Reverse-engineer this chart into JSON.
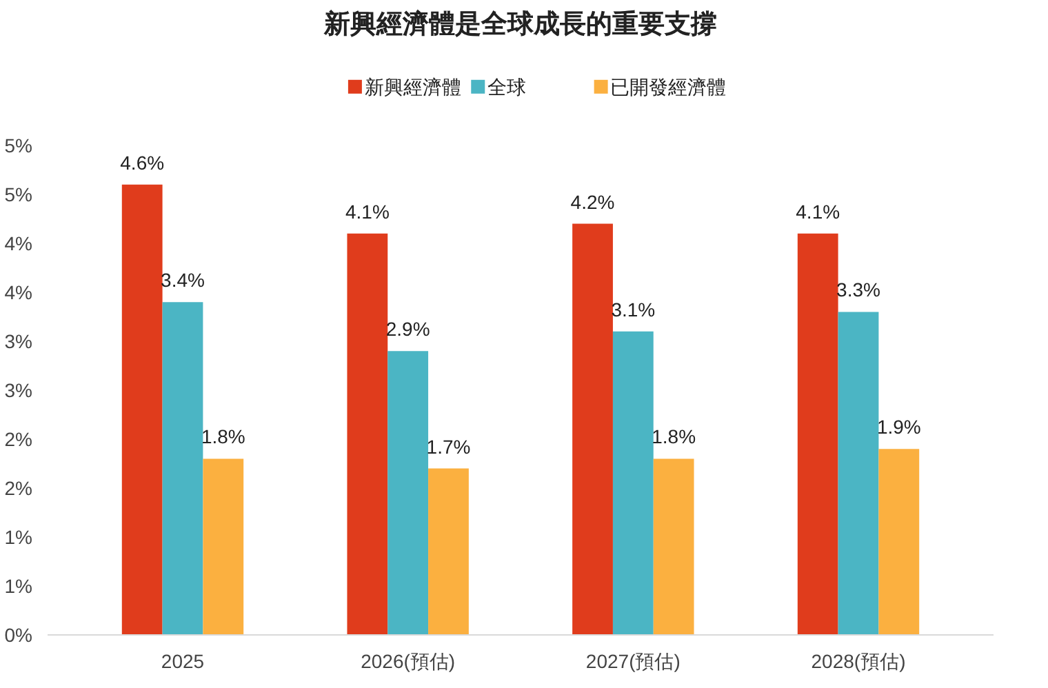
{
  "chart_data": {
    "type": "bar",
    "title": "新興經濟體是全球成長的重要支撐",
    "categories": [
      "2025",
      "2026(預估)",
      "2027(預估)",
      "2028(預估)"
    ],
    "series": [
      {
        "name": "新興經濟體",
        "color": "#e03c1c",
        "values": [
          4.6,
          4.1,
          4.2,
          4.1
        ],
        "value_labels": [
          "4.6%",
          "4.1%",
          "4.2%",
          "4.1%"
        ]
      },
      {
        "name": "全球",
        "color": "#4bb5c4",
        "values": [
          3.4,
          2.9,
          3.1,
          3.3
        ],
        "value_labels": [
          "3.4%",
          "2.9%",
          "3.1%",
          "3.3%"
        ]
      },
      {
        "name": "已開發經濟體",
        "color": "#fbb040",
        "values": [
          1.8,
          1.7,
          1.8,
          1.9
        ],
        "value_labels": [
          "1.8%",
          "1.7%",
          "1.8%",
          "1.9%"
        ]
      }
    ],
    "ylim": [
      0,
      5
    ],
    "yticks": [
      {
        "value": 0,
        "label": "0%"
      },
      {
        "value": 0.5,
        "label": "1%"
      },
      {
        "value": 1,
        "label": "1%"
      },
      {
        "value": 1.5,
        "label": "2%"
      },
      {
        "value": 2,
        "label": "2%"
      },
      {
        "value": 2.5,
        "label": "3%"
      },
      {
        "value": 3,
        "label": "3%"
      },
      {
        "value": 3.5,
        "label": "4%"
      },
      {
        "value": 4,
        "label": "4%"
      },
      {
        "value": 4.5,
        "label": "5%"
      },
      {
        "value": 5,
        "label": "5%"
      }
    ],
    "grid": false,
    "legend": "top"
  }
}
